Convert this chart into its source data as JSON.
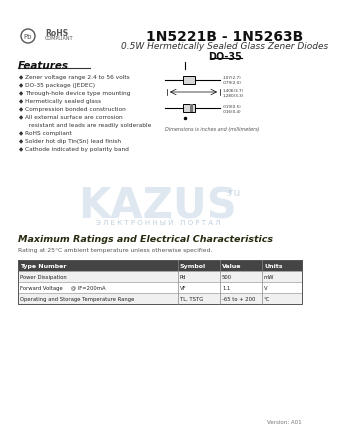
{
  "title": "1N5221B - 1N5263B",
  "subtitle": "0.5W Hermetically Sealed Glass Zener Diodes",
  "package": "DO-35",
  "bg_color": "#ffffff",
  "features_title": "Features",
  "features": [
    "Zener voltage range 2.4 to 56 volts",
    "DO-35 package (JEDEC)",
    "Through-hole device type mounting",
    "Hermetically sealed glass",
    "Compression bonded construction",
    "All external surface are corrosion",
    "  resistant and leads are readily solderable",
    "RoHS compliant",
    "Solder hot dip Tin(Sn) lead finish",
    "Cathode indicated by polarity band"
  ],
  "section_title": "Maximum Ratings and Electrical Characteristics",
  "section_sub": "Rating at 25°C ambient temperature unless otherwise specified.",
  "table_headers": [
    "Type Number",
    "Symbol",
    "Value",
    "Units"
  ],
  "table_rows": [
    [
      "Power Dissipation",
      "Pd",
      "500",
      "mW"
    ],
    [
      "Forward Voltage     @ IF=200mA",
      "VF",
      "1.1",
      "V"
    ],
    [
      "Operating and Storage Temperature Range",
      "TL, TSTG",
      "-65 to + 200",
      "°C"
    ]
  ],
  "dim_note": "Dimensions is inches and (millimeters)",
  "version": "Version: A01"
}
